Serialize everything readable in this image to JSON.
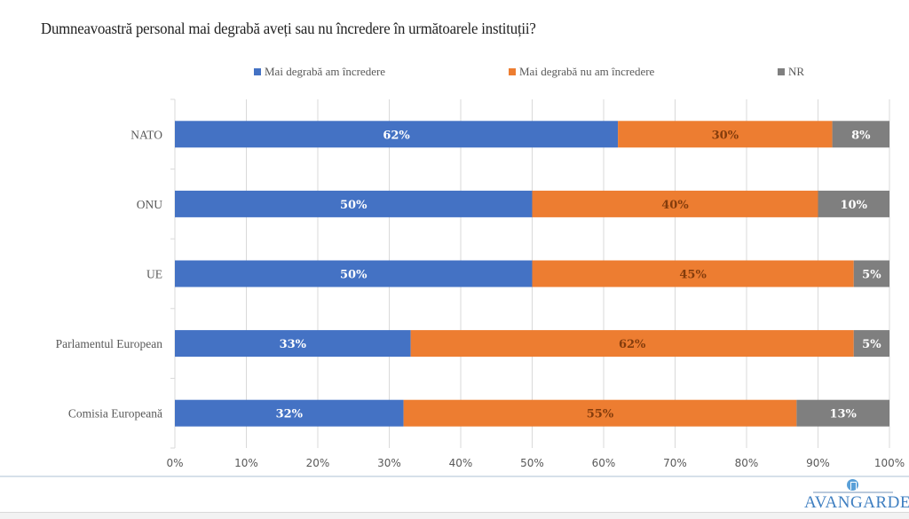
{
  "chart_data": {
    "type": "bar",
    "orientation": "horizontal",
    "stacked": "percent",
    "title": "Dumneavoastră personal mai degrabă aveți sau nu încredere în următoarele instituții?",
    "categories": [
      "NATO",
      "ONU",
      "UE",
      "Parlamentul European",
      "Comisia Europeană"
    ],
    "series": [
      {
        "name": "Mai degrabă am încredere",
        "color": "#4472c4",
        "label_color": "#ffffff",
        "values": [
          62,
          50,
          50,
          33,
          32
        ]
      },
      {
        "name": "Mai degrabă nu am încredere",
        "color": "#ed7d31",
        "label_color": "#843c0c",
        "values": [
          30,
          40,
          45,
          62,
          55
        ]
      },
      {
        "name": "NR",
        "color": "#7f7f7f",
        "label_color": "#ffffff",
        "values": [
          8,
          10,
          5,
          5,
          13
        ]
      }
    ],
    "data_labels": [
      [
        "62%",
        "50%",
        "50%",
        "33%",
        "32%"
      ],
      [
        "30%",
        "40%",
        "45%",
        "62%",
        "55%"
      ],
      [
        "8%",
        "10%",
        "5%",
        "5%",
        "13%"
      ]
    ],
    "xlim": [
      0,
      100
    ],
    "xticks": [
      0,
      10,
      20,
      30,
      40,
      50,
      60,
      70,
      80,
      90,
      100
    ],
    "xtick_labels": [
      "0%",
      "10%",
      "20%",
      "30%",
      "40%",
      "50%",
      "60%",
      "70%",
      "80%",
      "90%",
      "100%"
    ],
    "xlabel": "",
    "ylabel": "",
    "grid": "vertical",
    "legend_position": "top"
  },
  "footer": {
    "logo_text": "AVANGARDE"
  }
}
